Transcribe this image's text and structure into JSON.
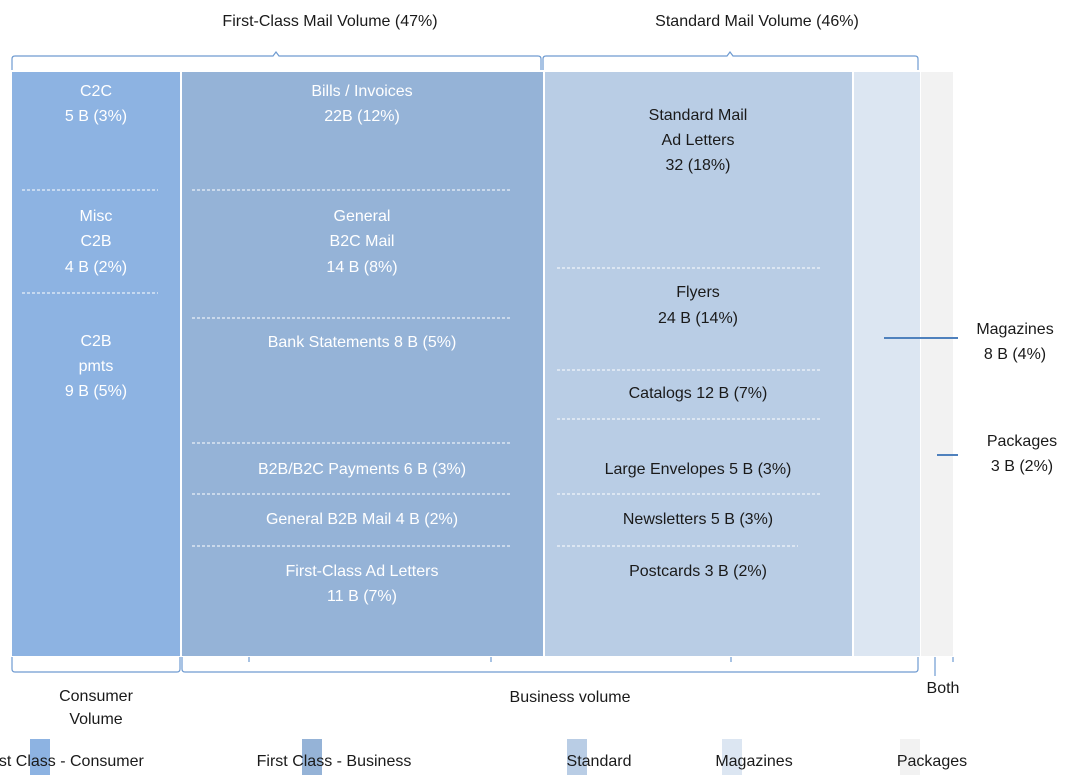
{
  "header": {
    "first_class": "First-Class Mail Volume (47%)",
    "standard": "Standard Mail Volume (46%)"
  },
  "columns": [
    {
      "blocks": [
        {
          "lines": [
            "C2C",
            "5 B (3%)"
          ]
        },
        {
          "lines": [
            "Misc",
            "C2B",
            "4 B (2%)"
          ]
        },
        {
          "lines": [
            "C2B",
            "pmts",
            "9 B (5%)"
          ]
        }
      ]
    },
    {
      "blocks": [
        {
          "lines": [
            "Bills / Invoices",
            "22B (12%)"
          ]
        },
        {
          "lines": [
            "General",
            "B2C Mail",
            "14 B (8%)"
          ]
        },
        {
          "lines": [
            "Bank Statements 8 B (5%)"
          ]
        },
        {
          "lines": [
            "B2B/B2C Payments 6 B (3%)"
          ]
        },
        {
          "lines": [
            "General B2B Mail 4 B (2%)"
          ]
        },
        {
          "lines": [
            "First-Class Ad Letters",
            "11 B (7%)"
          ]
        }
      ]
    },
    {
      "blocks": [
        {
          "lines": [
            "Standard Mail",
            "Ad Letters",
            "32 (18%)"
          ]
        },
        {
          "lines": [
            "Flyers",
            "24 B (14%)"
          ]
        },
        {
          "lines": [
            "Catalogs 12 B (7%)"
          ]
        },
        {
          "lines": [
            "Large Envelopes 5 B (3%)"
          ]
        },
        {
          "lines": [
            "Newsletters 5 B (3%)"
          ]
        },
        {
          "lines": [
            "Postcards 3 B (2%)"
          ]
        }
      ]
    }
  ],
  "callouts": [
    {
      "lines": [
        "Magazines",
        "8 B (4%)"
      ]
    },
    {
      "lines": [
        "Packages",
        "3 B (2%)"
      ]
    }
  ],
  "footer": {
    "consumer": [
      "Consumer",
      "Volume"
    ],
    "business": "Business volume",
    "both": "Both"
  },
  "legend": [
    "First Class - Consumer",
    "First Class - Business",
    "Standard",
    "Magazines",
    "Packages"
  ]
}
